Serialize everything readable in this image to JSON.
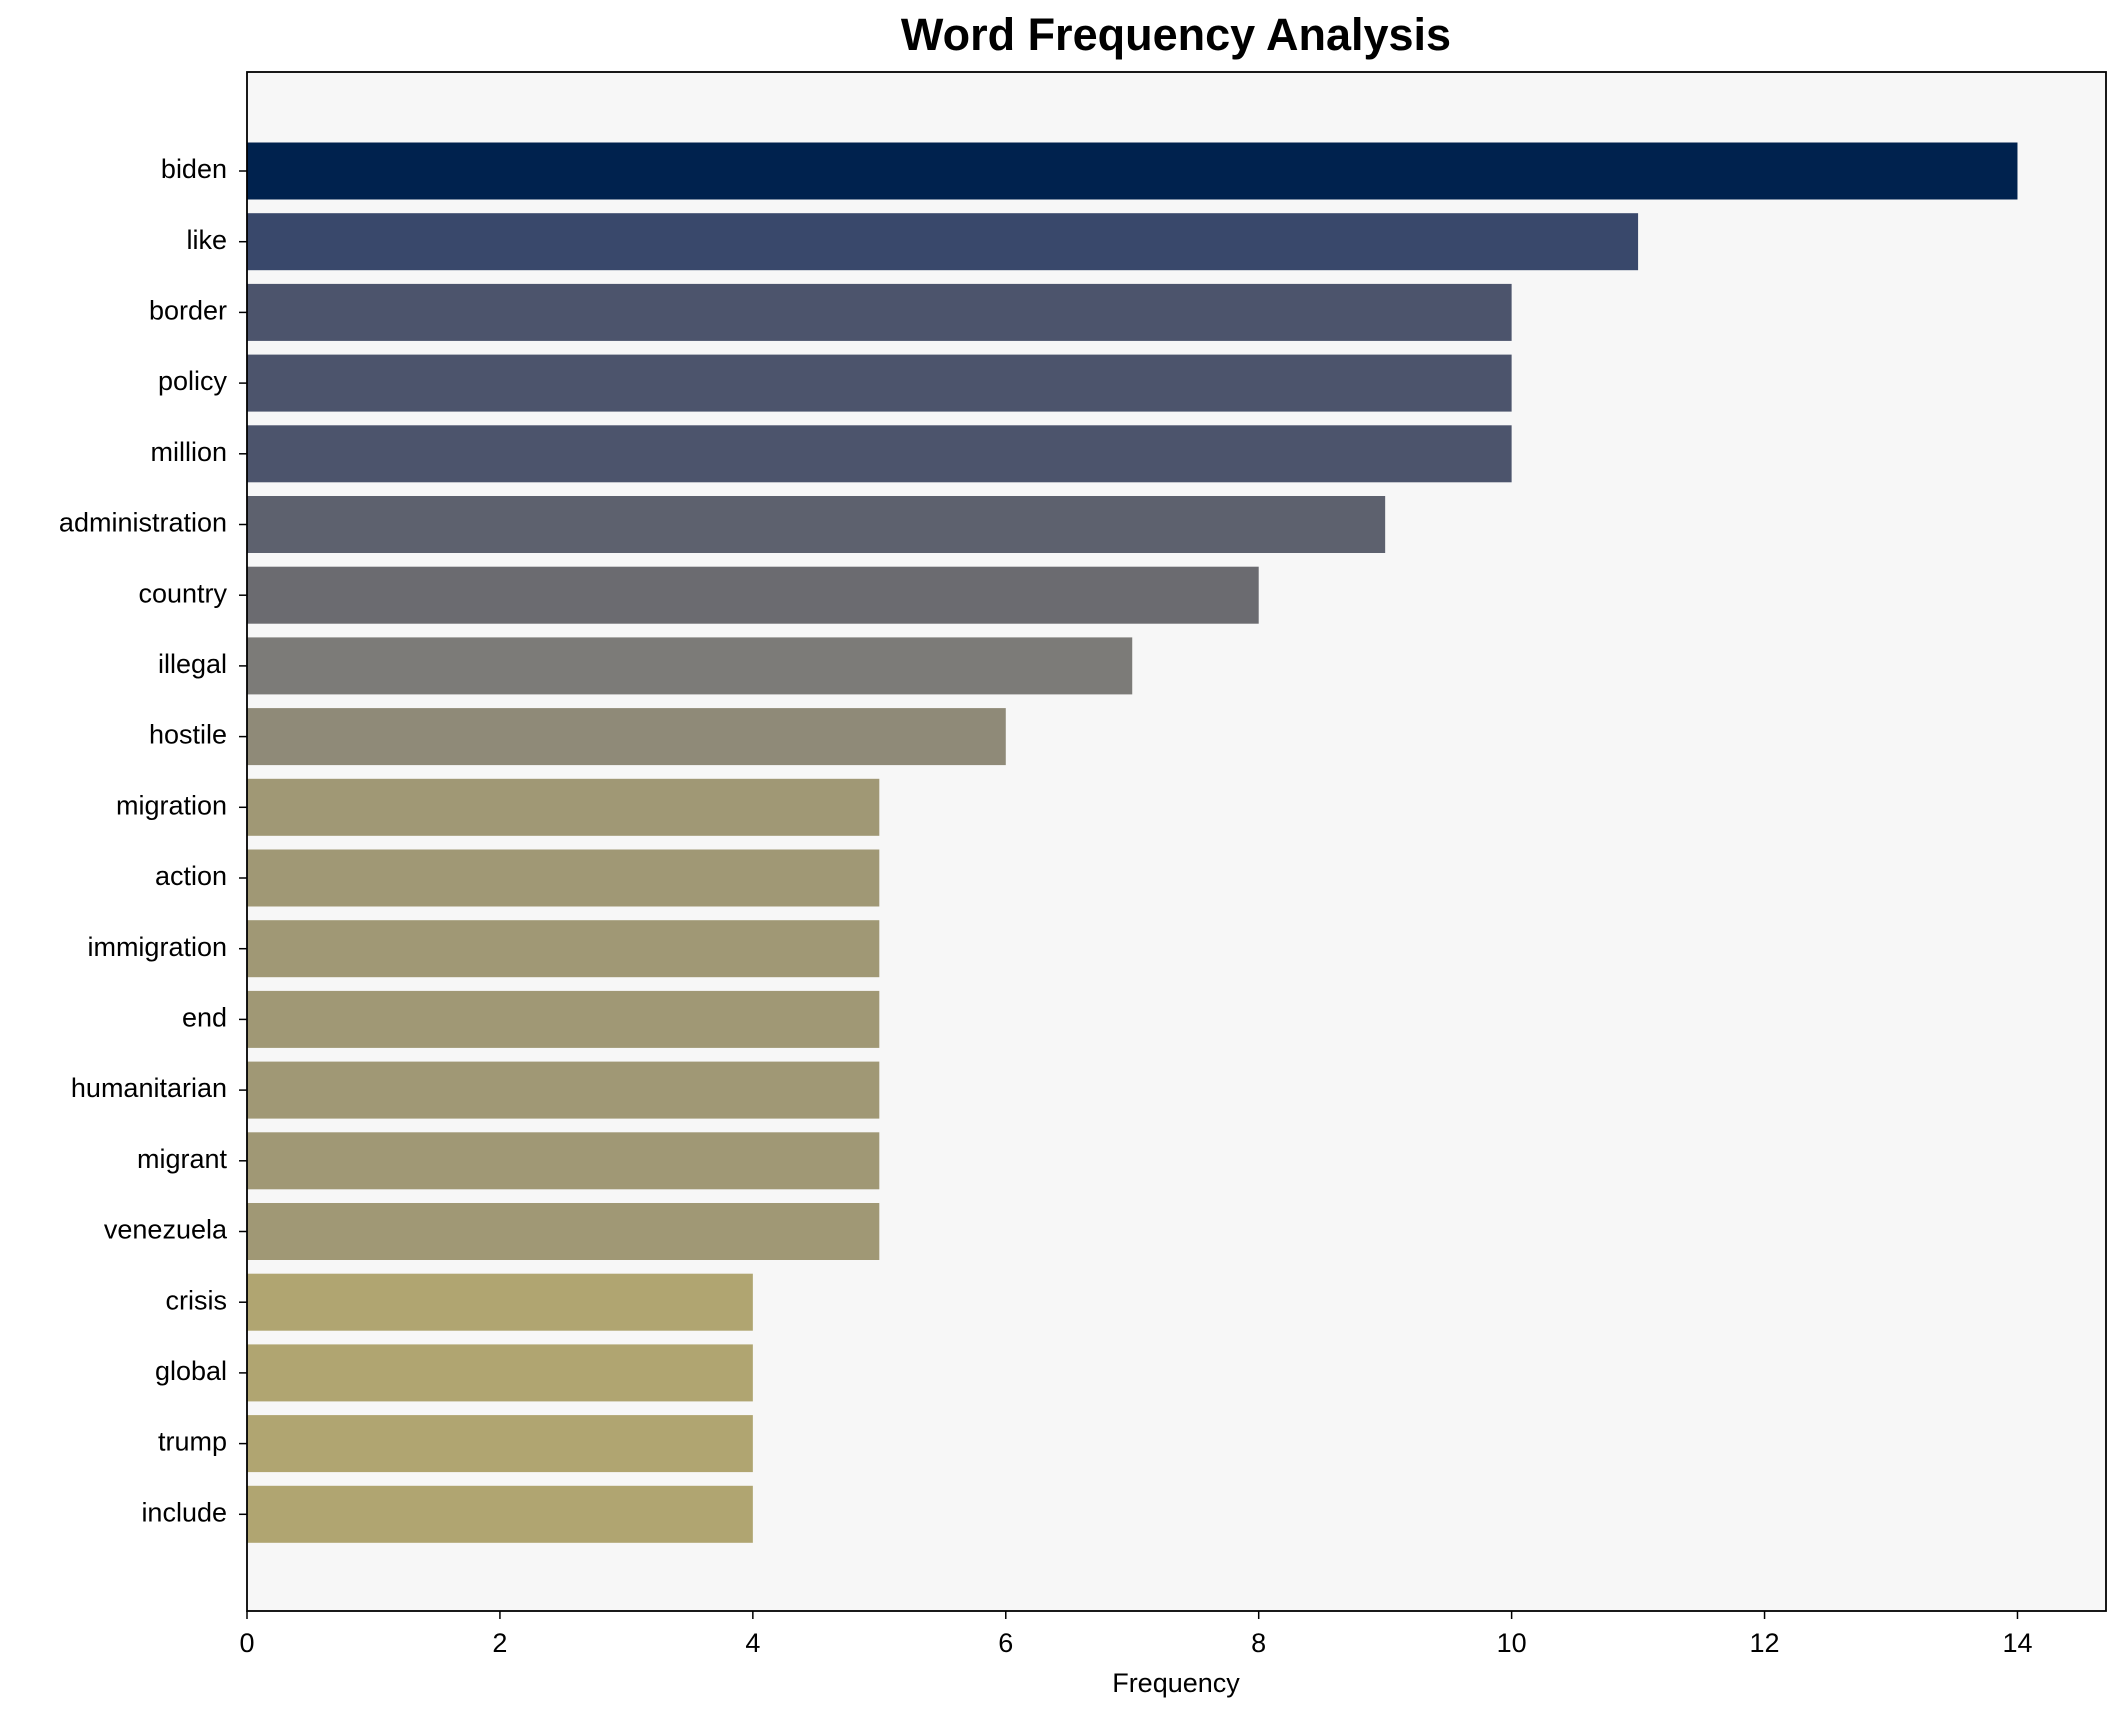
{
  "chart_data": {
    "type": "barh",
    "title": "Word Frequency Analysis",
    "xlabel": "Frequency",
    "categories": [
      "biden",
      "like",
      "border",
      "policy",
      "million",
      "administration",
      "country",
      "illegal",
      "hostile",
      "migration",
      "action",
      "immigration",
      "end",
      "humanitarian",
      "migrant",
      "venezuela",
      "crisis",
      "global",
      "trump",
      "include"
    ],
    "values": [
      14,
      11,
      10,
      10,
      10,
      9,
      8,
      7,
      6,
      5,
      5,
      5,
      5,
      5,
      5,
      5,
      4,
      4,
      4,
      4
    ],
    "colors": [
      "#00224e",
      "#39486b",
      "#4c546c",
      "#4c546c",
      "#4c546c",
      "#5d616e",
      "#6b6b70",
      "#7c7b78",
      "#8f8a78",
      "#a09875",
      "#a09875",
      "#a09875",
      "#a09875",
      "#a09875",
      "#a09875",
      "#a09875",
      "#b0a571",
      "#b0a571",
      "#b0a571",
      "#b0a571"
    ],
    "xlim": [
      0,
      14.7
    ],
    "xticks": [
      0,
      2,
      4,
      6,
      8,
      10,
      12,
      14
    ],
    "grid": false
  }
}
